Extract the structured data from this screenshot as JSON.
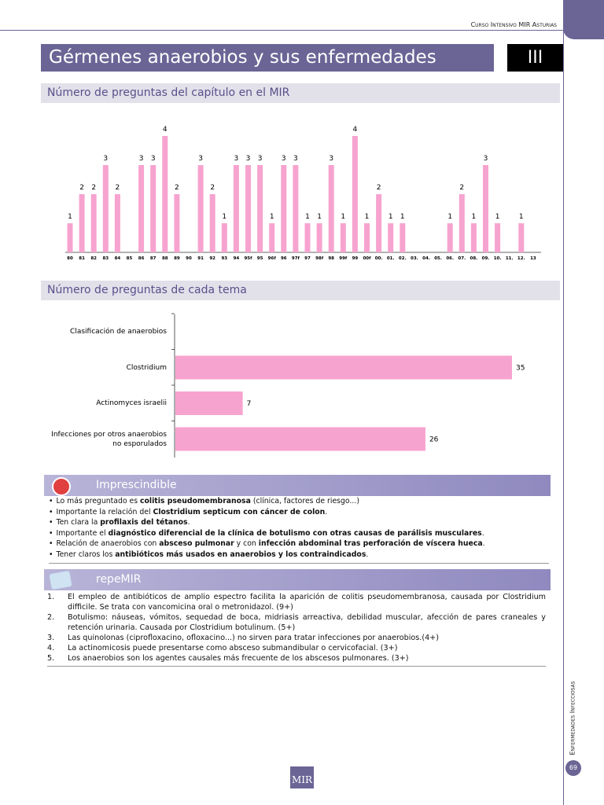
{
  "header": {
    "course": "Curso Intensivo MIR Asturias",
    "title": "Gérmenes anaerobios y sus enfermedades",
    "chapter": "III"
  },
  "chart_data": [
    {
      "type": "bar",
      "title": "Número de preguntas del capítulo en el MIR",
      "color": "#f7a3cf",
      "categories": [
        "80",
        "81",
        "82",
        "83",
        "84",
        "85",
        "86",
        "87",
        "88",
        "89",
        "90",
        "91",
        "92",
        "93",
        "94",
        "95f",
        "95",
        "96f",
        "96",
        "97f",
        "97",
        "98f",
        "98",
        "99f",
        "99",
        "00f",
        "00.",
        "01.",
        "02.",
        "03.",
        "04.",
        "05.",
        "06.",
        "07.",
        "08.",
        "09.",
        "10.",
        "11.",
        "12.",
        "13"
      ],
      "values": [
        1,
        2,
        2,
        3,
        2,
        null,
        3,
        3,
        4,
        2,
        null,
        3,
        2,
        1,
        3,
        3,
        3,
        1,
        3,
        3,
        1,
        1,
        3,
        1,
        4,
        1,
        2,
        1,
        1,
        null,
        null,
        null,
        1,
        2,
        1,
        3,
        1,
        null,
        1,
        null
      ]
    },
    {
      "type": "barh",
      "title": "Número de preguntas de cada tema",
      "color": "#f7a3cf",
      "categories": [
        "Clasificación de anaerobios",
        "Clostridium",
        "Actinomyces israelii",
        "Infecciones por otros anaerobios no esporulados"
      ],
      "values": [
        null,
        35,
        7,
        26
      ]
    }
  ],
  "imprescindible": {
    "title": "Imprescindible",
    "items": [
      [
        "Lo más preguntado es ",
        "colitis pseudomembranosa",
        " (clínica, factores de riesgo...)"
      ],
      [
        "Importante la relación del ",
        "Clostridium septicum con cáncer de colon",
        "."
      ],
      [
        "Ten clara la ",
        "profilaxis del tétanos",
        "."
      ],
      [
        "Importante el ",
        "diagnóstico diferencial de la clínica de botulismo con otras causas de parálisis musculares",
        "."
      ],
      [
        "Relación de anaerobios con ",
        "absceso pulmonar",
        " y con ",
        "infección abdominal tras perforación de víscera hueca",
        "."
      ],
      [
        "Tener claros los ",
        "antibióticos más usados en anaerobios y los contraindicados",
        "."
      ]
    ]
  },
  "repemir": {
    "title": "repeMIR",
    "items": [
      {
        "number": "1.",
        "text": "El empleo de antibióticos de amplio espectro facilita la aparición de colitis pseudomembranosa, causada por Clostridium difficile. Se trata con vancomicina oral o metronidazol. (9+)"
      },
      {
        "number": "2.",
        "text": "Botulismo: náuseas, vómitos, sequedad de boca, midriasis arreactiva, debilidad muscular, afección de pares craneales y retención urinaria. Causada por Clostridium botulinum. (5+)"
      },
      {
        "number": "3.",
        "text": "Las quinolonas (ciprofloxacino, ofloxacino...) no sirven para tratar infecciones por anaerobios.(4+)"
      },
      {
        "number": "4.",
        "text": "La actinomicosis puede presentarse como absceso submandibular o cervicofacial. (3+)"
      },
      {
        "number": "5.",
        "text": "Los anaerobios son los agentes causales más frecuente de los abscesos pulmonares. (3+)"
      }
    ]
  },
  "footer": {
    "section": "Enfermedades Infecciosas",
    "page": "69",
    "logo": "MIR"
  }
}
